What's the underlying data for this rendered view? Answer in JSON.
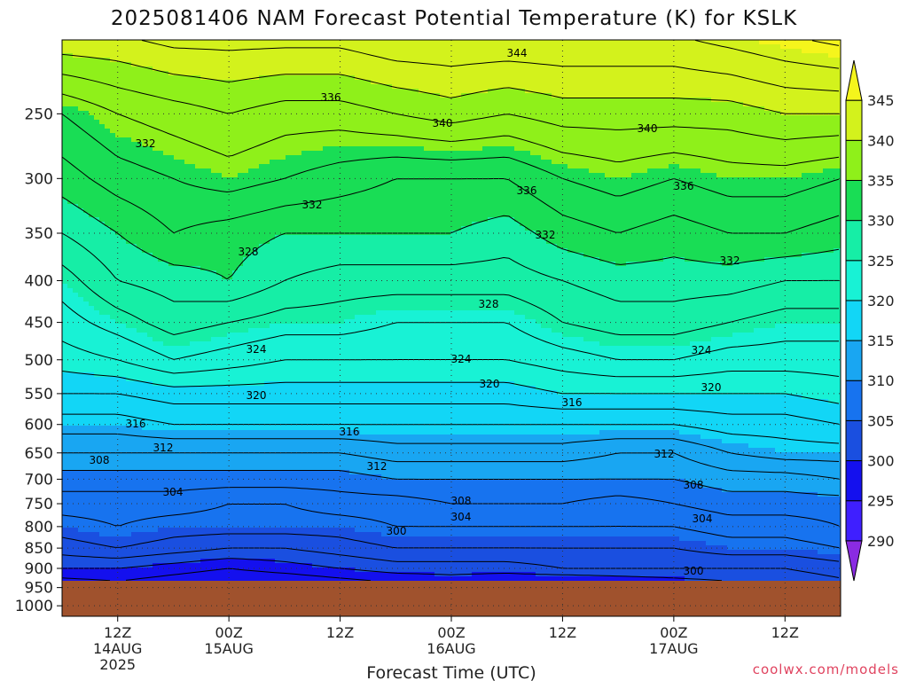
{
  "chart_data": {
    "type": "heatmap",
    "title": "2025081406 NAM Forecast Potential Temperature (K) for KSLK",
    "xlabel": "Forecast Time (UTC)",
    "ylabel": "",
    "y_scale": "log-pressure",
    "y_ticks": [
      "250",
      "300",
      "350",
      "400",
      "450",
      "500",
      "550",
      "600",
      "650",
      "700",
      "750",
      "800",
      "850",
      "900",
      "950",
      "1000"
    ],
    "ylim_hPa": [
      1030,
      203
    ],
    "x_ticks": [
      {
        "line1": "12Z",
        "line2": "14AUG",
        "line3": "2025"
      },
      {
        "line1": "00Z",
        "line2": "15AUG",
        "line3": ""
      },
      {
        "line1": "12Z",
        "line2": "",
        "line3": ""
      },
      {
        "line1": "00Z",
        "line2": "16AUG",
        "line3": ""
      },
      {
        "line1": "12Z",
        "line2": "",
        "line3": ""
      },
      {
        "line1": "00Z",
        "line2": "17AUG",
        "line3": ""
      },
      {
        "line1": "12Z",
        "line2": "",
        "line3": ""
      }
    ],
    "xlim_hours": [
      -6,
      78
    ],
    "colorbar": {
      "labels": [
        "290",
        "295",
        "300",
        "305",
        "310",
        "315",
        "320",
        "325",
        "330",
        "335",
        "340",
        "345"
      ],
      "colors": [
        "#8a2be2",
        "#3f1fff",
        "#1410ee",
        "#1a4fe0",
        "#1773ef",
        "#19a6f2",
        "#12d6f6",
        "#18f2d5",
        "#16eea6",
        "#19dd55",
        "#8ff01a",
        "#d3f21c",
        "#f5f51c"
      ]
    },
    "contour_labels": [
      "344",
      "336",
      "340",
      "332",
      "340",
      "336",
      "336",
      "332",
      "332",
      "332",
      "328",
      "328",
      "324",
      "324",
      "324",
      "320",
      "320",
      "320",
      "316",
      "316",
      "316",
      "312",
      "312",
      "312",
      "308",
      "308",
      "308",
      "304",
      "304",
      "304",
      "300",
      "300"
    ],
    "isentrope_profile": {
      "columns_hours": [
        -6,
        0,
        6,
        12,
        18,
        24,
        30,
        36,
        42,
        48,
        54,
        60,
        66,
        72,
        78
      ],
      "pressure_levels_hPa": [
        1000,
        950,
        900,
        850,
        800,
        750,
        700,
        650,
        600,
        550,
        500,
        450,
        400,
        350,
        300,
        250,
        200
      ],
      "theta_K": [
        [
          296,
          297,
          298,
          296,
          296,
          296,
          297,
          298,
          297,
          296,
          297,
          298,
          299,
          299,
          300
        ],
        [
          296,
          297,
          296,
          295,
          295,
          296,
          297,
          298,
          297,
          296,
          297,
          298,
          299,
          300,
          301
        ],
        [
          300,
          300,
          299,
          298,
          299,
          300,
          301,
          301,
          301,
          302,
          302,
          302,
          302,
          302,
          303
        ],
        [
          303,
          304,
          303,
          302,
          302,
          303,
          304,
          304,
          304,
          304,
          304,
          304,
          305,
          305,
          306
        ],
        [
          305,
          306,
          305,
          305,
          305,
          305,
          306,
          306,
          306,
          306,
          306,
          306,
          307,
          307,
          308
        ],
        [
          307,
          307,
          307,
          306,
          306,
          307,
          307,
          308,
          308,
          308,
          307,
          308,
          309,
          309,
          309
        ],
        [
          309,
          309,
          309,
          309,
          309,
          309,
          310,
          310,
          310,
          310,
          310,
          310,
          311,
          311,
          312
        ],
        [
          312,
          312,
          312,
          312,
          312,
          312,
          313,
          313,
          313,
          313,
          312,
          312,
          314,
          315,
          315
        ],
        [
          315,
          315,
          316,
          316,
          316,
          316,
          316,
          316,
          316,
          316,
          316,
          316,
          317,
          317,
          318
        ],
        [
          318,
          318,
          319,
          319,
          319,
          319,
          319,
          319,
          319,
          320,
          320,
          320,
          320,
          320,
          321
        ],
        [
          321,
          322,
          324,
          323,
          322,
          322,
          322,
          322,
          322,
          323,
          324,
          324,
          323,
          323,
          323
        ],
        [
          323,
          325,
          327,
          326,
          325,
          325,
          324,
          324,
          324,
          326,
          327,
          327,
          326,
          325,
          325
        ],
        [
          325,
          328,
          329,
          330,
          328,
          327,
          327,
          327,
          327,
          328,
          329,
          329,
          329,
          328,
          328
        ],
        [
          328,
          330,
          332,
          331,
          330,
          330,
          330,
          330,
          329,
          331,
          332,
          331,
          332,
          332,
          331
        ],
        [
          331,
          333,
          334,
          335,
          334,
          333,
          332,
          332,
          332,
          334,
          335,
          334,
          335,
          335,
          334
        ],
        [
          334,
          336,
          337,
          338,
          337,
          337,
          338,
          339,
          338,
          339,
          339,
          339,
          339,
          340,
          340
        ],
        [
          342,
          342,
          343,
          343,
          343,
          343,
          344,
          344,
          344,
          344,
          344,
          344,
          345,
          346,
          347
        ]
      ]
    }
  },
  "credit": "coolwx.com/models"
}
